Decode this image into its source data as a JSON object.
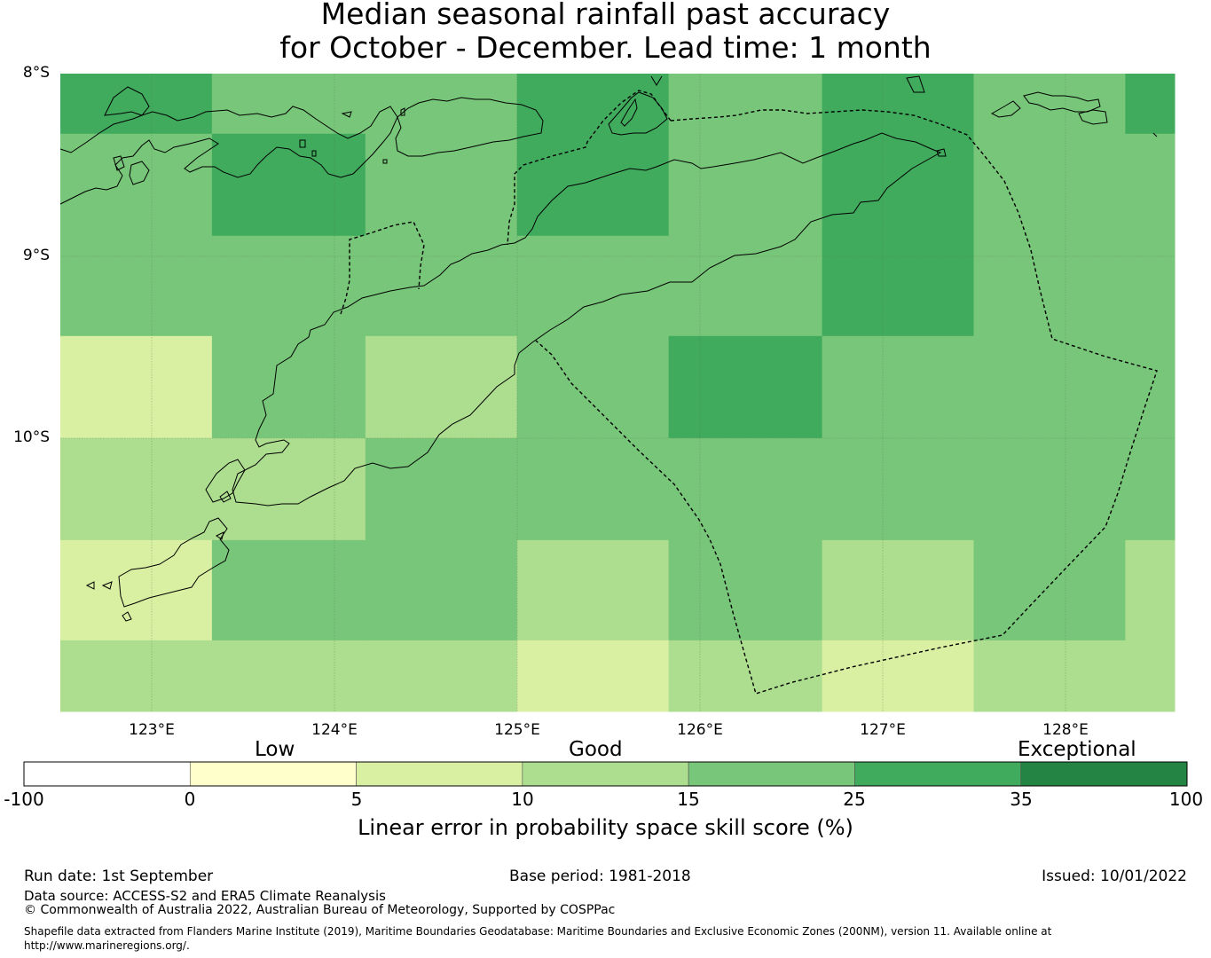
{
  "title_line1": "Median seasonal rainfall past accuracy",
  "title_line2": "for October - December. Lead time: 1 month",
  "map": {
    "lat_labels": [
      "8°S",
      "9°S",
      "10°S"
    ],
    "lon_labels": [
      "123°E",
      "124°E",
      "125°E",
      "126°E",
      "127°E",
      "128°E"
    ],
    "lon_range": [
      122.5,
      128.6
    ],
    "lat_range": [
      -8.0,
      -11.5
    ],
    "grid_lon_edges": [
      122.5,
      123.33,
      124.17,
      125.0,
      125.83,
      126.67,
      127.5,
      128.33,
      128.6
    ],
    "grid_lat_edges": [
      -8.0,
      -8.33,
      -8.89,
      -9.44,
      -10.0,
      -10.56,
      -11.11,
      -11.5
    ],
    "skill_class_grid": [
      [
        5,
        4,
        4,
        5,
        4,
        5,
        4,
        5
      ],
      [
        4,
        5,
        4,
        5,
        4,
        5,
        4,
        4
      ],
      [
        4,
        4,
        4,
        4,
        4,
        5,
        4,
        4
      ],
      [
        2,
        4,
        3,
        4,
        5,
        4,
        4,
        4
      ],
      [
        3,
        3,
        4,
        4,
        4,
        4,
        4,
        4
      ],
      [
        2,
        4,
        4,
        3,
        4,
        3,
        4,
        3
      ],
      [
        3,
        3,
        3,
        2,
        3,
        2,
        3,
        3
      ]
    ]
  },
  "colorbar": {
    "category_labels": [
      "Low",
      "Good",
      "Exceptional"
    ],
    "ticks": [
      "-100",
      "0",
      "5",
      "10",
      "15",
      "25",
      "35",
      "100"
    ],
    "colors": [
      "#ffffff",
      "#ffffcc",
      "#d9f0a3",
      "#addd8e",
      "#78c679",
      "#41ab5d",
      "#238443"
    ],
    "label": "Linear error in probability space skill score (%)"
  },
  "footer": {
    "run_date": "Run date: 1st September",
    "base_period": "Base period: 1981-2018",
    "issued": "Issued: 10/01/2022",
    "data_source": "Data source: ACCESS-S2 and ERA5 Climate Reanalysis",
    "copyright": "© Commonwealth of Australia 2022, Australian Bureau of Meteorology, Supported by COSPPac",
    "shapefile": "Shapefile data extracted from Flanders Marine Institute (2019), Maritime Boundaries Geodatabase: Maritime Boundaries and Exclusive Economic Zones (200NM), version 11. Available online at http://www.marineregions.org/."
  }
}
